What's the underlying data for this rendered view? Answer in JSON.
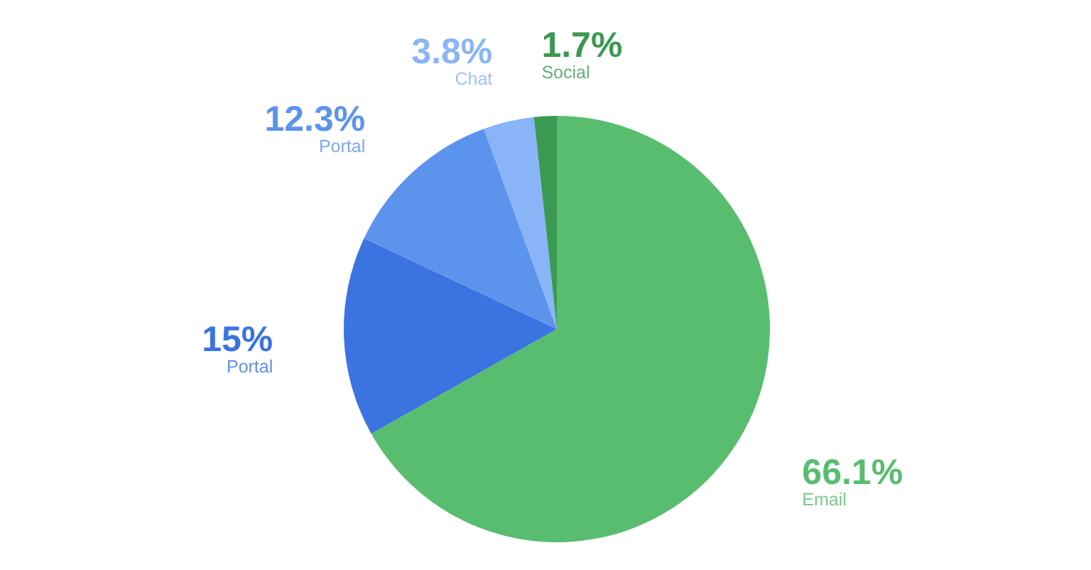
{
  "chart_data": {
    "type": "pie",
    "categories": [
      "Email",
      "Portal",
      "Portal",
      "Chat",
      "Social"
    ],
    "values": [
      66.1,
      15,
      12.3,
      3.8,
      1.7
    ],
    "value_labels": [
      "66.1%",
      "15%",
      "12.3%",
      "3.8%",
      "1.7%"
    ],
    "colors": [
      "#59bd70",
      "#3b73e0",
      "#5c93ed",
      "#8ab4f8",
      "#3a9a52"
    ]
  }
}
